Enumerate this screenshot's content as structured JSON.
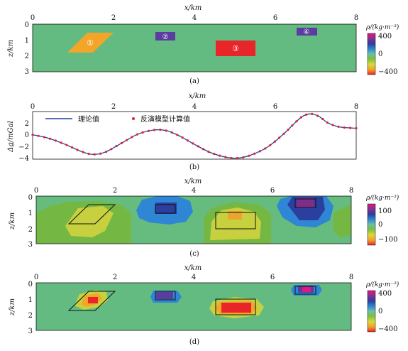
{
  "figure": {
    "panels": [
      {
        "id": "a",
        "caption": "(a)",
        "xlabel": "x/km",
        "ylabel": "z/km",
        "xticks": [
          "0",
          "2",
          "4",
          "6",
          "8"
        ],
        "yticks": [
          "0",
          "1",
          "2",
          "3"
        ],
        "colorbar": {
          "title": "ρ/(kg·m⁻³)",
          "ticks": [
            "400",
            "0",
            "−400"
          ]
        },
        "background_color": "#63bb82",
        "bodies": [
          {
            "label": "①",
            "shape": "parallelogram",
            "corners_km": [
              [
                1.0,
                1.7
              ],
              [
                1.5,
                0.6
              ],
              [
                2.1,
                0.6
              ],
              [
                1.6,
                1.7
              ]
            ],
            "color": "#f2a528"
          },
          {
            "label": "②",
            "shape": "rect",
            "x_km": [
              3.1,
              3.65
            ],
            "z_km": [
              0.55,
              1.0
            ],
            "color": "#5a3d9e"
          },
          {
            "label": "③",
            "shape": "rect",
            "x_km": [
              4.6,
              5.6
            ],
            "z_km": [
              1.0,
              2.0
            ],
            "color": "#e8262a"
          },
          {
            "label": "④",
            "shape": "rect",
            "x_km": [
              6.5,
              7.05
            ],
            "z_km": [
              0.25,
              0.7
            ],
            "color": "#5a3d9e"
          }
        ]
      },
      {
        "id": "b",
        "caption": "(b)",
        "xlabel": "x/km",
        "ylabel": "Δg/mGal",
        "xticks": [
          "0",
          "2",
          "4",
          "6",
          "8"
        ],
        "yticks": [
          "2",
          "0",
          "−2",
          "−4"
        ],
        "legend": {
          "theory": "理论值",
          "inversion": "反演模型计算值",
          "placement": "top-left"
        }
      },
      {
        "id": "c",
        "caption": "(c)",
        "xlabel": "x/km",
        "ylabel": "z/km",
        "xticks": [
          "0",
          "2",
          "4",
          "6",
          "8"
        ],
        "yticks": [
          "0",
          "1",
          "2",
          "3"
        ],
        "colorbar": {
          "title": "ρ/(kg·m⁻³)",
          "ticks": [
            "100",
            "0",
            "−100"
          ]
        }
      },
      {
        "id": "d",
        "caption": "(d)",
        "xlabel": "x/km",
        "ylabel": "z/km",
        "xticks": [
          "0",
          "2",
          "4",
          "6",
          "8"
        ],
        "yticks": [
          "0",
          "1",
          "2",
          "3"
        ],
        "colorbar": {
          "title": "ρ/(kg·m⁻³)",
          "ticks": [
            "400",
            "0",
            "−400"
          ]
        }
      }
    ]
  },
  "chart_data": {
    "type": "line",
    "xlabel": "x/km",
    "ylabel": "Δg/mGal",
    "xlim": [
      0,
      8
    ],
    "ylim": [
      -4,
      4
    ],
    "grid": false,
    "legend_placement": "top-left",
    "x": [
      0,
      0.4,
      0.8,
      1.2,
      1.5,
      1.8,
      2.2,
      2.6,
      3.0,
      3.3,
      3.6,
      4.0,
      4.4,
      4.8,
      5.1,
      5.4,
      5.8,
      6.2,
      6.5,
      6.7,
      6.9,
      7.1,
      7.3,
      7.6,
      8.0
    ],
    "series": [
      {
        "name": "理论值",
        "style": "line",
        "color": "#1f3fa0",
        "values": [
          0.1,
          -0.5,
          -1.5,
          -2.7,
          -3.2,
          -2.8,
          -1.3,
          0.2,
          0.9,
          0.8,
          0,
          -1.5,
          -2.9,
          -3.7,
          -3.8,
          -3.3,
          -2.0,
          0.2,
          2.2,
          3.3,
          3.6,
          3.1,
          2.1,
          1.4,
          1.2
        ]
      },
      {
        "name": "反演模型计算值",
        "style": "markers",
        "color": "#e0262a",
        "values": [
          0.1,
          -0.5,
          -1.5,
          -2.7,
          -3.2,
          -2.8,
          -1.3,
          0.2,
          0.9,
          0.8,
          0,
          -1.5,
          -2.9,
          -3.7,
          -3.8,
          -3.3,
          -2.0,
          0.2,
          2.2,
          3.3,
          3.6,
          3.1,
          2.1,
          1.4,
          1.2
        ]
      }
    ]
  }
}
